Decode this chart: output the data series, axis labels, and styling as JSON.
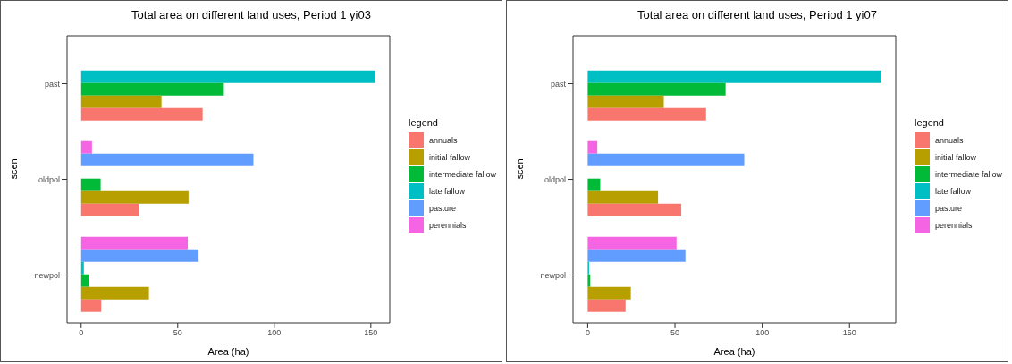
{
  "chart_data": [
    {
      "type": "bar",
      "orientation": "horizontal",
      "title": "Total area on different land uses, Period 1 yi03",
      "xlabel": "Area (ha)",
      "ylabel": "scen",
      "legend_title": "legend",
      "legend": "right",
      "categories": [
        "past",
        "oldpol",
        "newpol"
      ],
      "xlim": [
        -7.3,
        159.8
      ],
      "xticks": [
        0,
        50,
        100,
        150
      ],
      "series": [
        {
          "name": "annuals",
          "color": "#f8766d",
          "values": [
            62.9,
            29.8,
            10.4
          ]
        },
        {
          "name": "initial fallow",
          "color": "#b79f00",
          "values": [
            41.6,
            55.6,
            35.1
          ]
        },
        {
          "name": "intermediate fallow",
          "color": "#00ba38",
          "values": [
            73.9,
            10.1,
            4.1
          ]
        },
        {
          "name": "late fallow",
          "color": "#00bfc4",
          "values": [
            152.3,
            null,
            1.4
          ]
        },
        {
          "name": "pasture",
          "color": "#619cff",
          "values": [
            null,
            89.2,
            60.8
          ]
        },
        {
          "name": "perennials",
          "color": "#f564e3",
          "values": [
            null,
            5.6,
            55.2
          ]
        }
      ]
    },
    {
      "type": "bar",
      "orientation": "horizontal",
      "title": "Total area on different land uses, Period 1 yi07",
      "xlabel": "Area (ha)",
      "ylabel": "scen",
      "legend_title": "legend",
      "legend": "right",
      "categories": [
        "past",
        "oldpol",
        "newpol"
      ],
      "xlim": [
        -8.4,
        176.5
      ],
      "xticks": [
        0,
        50,
        100,
        150
      ],
      "series": [
        {
          "name": "annuals",
          "color": "#f8766d",
          "values": [
            67.8,
            53.6,
            21.7
          ]
        },
        {
          "name": "initial fallow",
          "color": "#b79f00",
          "values": [
            43.6,
            40.3,
            24.7
          ]
        },
        {
          "name": "intermediate fallow",
          "color": "#00ba38",
          "values": [
            79.0,
            7.2,
            1.5
          ]
        },
        {
          "name": "late fallow",
          "color": "#00bfc4",
          "values": [
            168.2,
            null,
            0.8
          ]
        },
        {
          "name": "pasture",
          "color": "#619cff",
          "values": [
            null,
            89.7,
            56.0
          ]
        },
        {
          "name": "perennials",
          "color": "#f564e3",
          "values": [
            null,
            5.5,
            50.9
          ]
        }
      ]
    }
  ]
}
